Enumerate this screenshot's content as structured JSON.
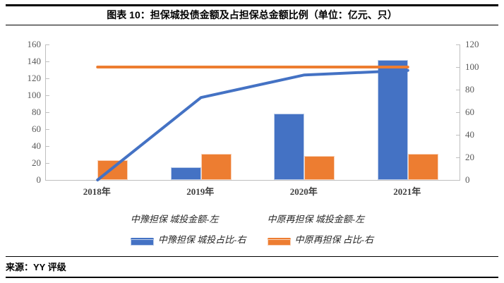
{
  "title": "图表 10：担保城投债金额及占担保总金额比例（单位：亿元、只）",
  "source": "来源：YY 评级",
  "colors": {
    "series_blue": "#4472C4",
    "series_orange": "#ED7D31",
    "axis_line": "#BFBFBF",
    "axis_text": "#595959",
    "x_axis_text": "#3F3F3F",
    "rule": "#000000"
  },
  "chart_data": {
    "type": "bar+line",
    "title": "图表 10：担保城投债金额及占担保总金额比例（单位：亿元、只）",
    "categories": [
      "2018年",
      "2019年",
      "2020年",
      "2021年"
    ],
    "series": [
      {
        "name": "中豫担保 城投金额-左",
        "kind": "bar",
        "axis": "left",
        "color": "#4472C4",
        "values": [
          0,
          15,
          78,
          142
        ]
      },
      {
        "name": "中原再担保 城投金额-左",
        "kind": "bar",
        "axis": "left",
        "color": "#ED7D31",
        "values": [
          23,
          31,
          28,
          31
        ]
      },
      {
        "name": "中豫担保 城投占比-右",
        "kind": "line",
        "axis": "right",
        "color": "#4472C4",
        "values": [
          0,
          73,
          93,
          97
        ]
      },
      {
        "name": "中原再担保 占比-右",
        "kind": "line",
        "axis": "right",
        "color": "#ED7D31",
        "values": [
          100,
          100,
          100,
          100
        ]
      }
    ],
    "left_axis": {
      "min": 0,
      "max": 160,
      "step": 20,
      "tick_labels": [
        "160",
        "140",
        "120",
        "100",
        "80",
        "60",
        "40",
        "20",
        "0"
      ]
    },
    "right_axis": {
      "min": 0,
      "max": 120,
      "step": 20,
      "tick_labels": [
        "120",
        "100",
        "80",
        "60",
        "40",
        "20",
        "0"
      ]
    },
    "legend_position": "bottom",
    "grid": false
  }
}
